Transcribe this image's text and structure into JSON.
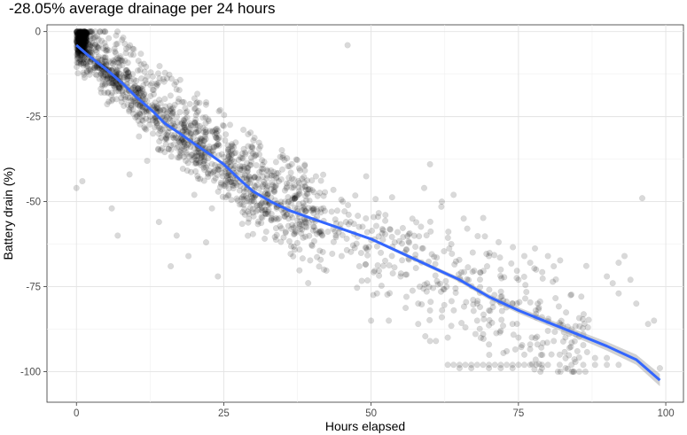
{
  "chart_data": {
    "type": "scatter",
    "title": "-28.05% average drainage per 24 hours",
    "xlabel": "Hours elapsed",
    "ylabel": "Battery drain (%)",
    "xlim": [
      -5,
      103
    ],
    "ylim": [
      -109,
      2
    ],
    "x_ticks": [
      0,
      25,
      50,
      75,
      100
    ],
    "x_tick_labels": [
      "0",
      "25",
      "50",
      "75",
      "100"
    ],
    "y_ticks": [
      0,
      -25,
      -50,
      -75,
      -100
    ],
    "y_tick_labels": [
      "0",
      "-25",
      "-50",
      "-75",
      "-100"
    ],
    "grid": true,
    "point_color": "#000000",
    "point_alpha": 0.15,
    "smooth_color": "#3366ff",
    "ribbon_color": "#999999",
    "smooth_line": {
      "x": [
        0,
        2,
        5,
        8,
        10,
        13,
        15,
        18,
        20,
        23,
        25,
        28,
        30,
        33,
        36,
        40,
        45,
        50,
        55,
        60,
        65,
        70,
        75,
        80,
        85,
        90,
        95,
        99
      ],
      "y": [
        -4,
        -7,
        -11,
        -15.5,
        -19,
        -23.5,
        -27,
        -30.5,
        -33,
        -36.5,
        -39,
        -44,
        -47,
        -50,
        -52.5,
        -55,
        -58,
        -61,
        -65,
        -69,
        -73,
        -78,
        -82,
        -85.5,
        -89,
        -92.5,
        -96.5,
        -102.5
      ]
    },
    "confidence_ribbon_halfwidth": [
      0.4,
      0.3,
      0.3,
      0.3,
      0.3,
      0.3,
      0.3,
      0.3,
      0.3,
      0.3,
      0.3,
      0.3,
      0.3,
      0.3,
      0.3,
      0.3,
      0.4,
      0.4,
      0.5,
      0.6,
      0.7,
      0.8,
      0.9,
      1.0,
      1.1,
      1.3,
      1.5,
      1.8
    ],
    "outlier_points": [
      [
        0,
        -46
      ],
      [
        1,
        -44
      ],
      [
        6,
        -52
      ],
      [
        7,
        -60
      ],
      [
        9,
        -42
      ],
      [
        12,
        -38
      ],
      [
        14,
        -56
      ],
      [
        16,
        -69
      ],
      [
        17,
        -60
      ],
      [
        19,
        -66
      ],
      [
        22,
        -62
      ],
      [
        24,
        -72
      ],
      [
        20,
        -48
      ],
      [
        23,
        -52
      ],
      [
        46,
        -4
      ],
      [
        60,
        -39
      ],
      [
        59,
        -46
      ],
      [
        62,
        -50
      ],
      [
        64,
        -48
      ],
      [
        63,
        -98
      ],
      [
        64,
        -98
      ],
      [
        65,
        -98
      ],
      [
        66,
        -98
      ],
      [
        67,
        -98
      ],
      [
        68,
        -98
      ],
      [
        69,
        -98
      ],
      [
        70,
        -98
      ],
      [
        71,
        -98
      ],
      [
        72,
        -98
      ],
      [
        73,
        -98
      ],
      [
        74,
        -98
      ],
      [
        75,
        -98
      ],
      [
        76,
        -98
      ],
      [
        77,
        -98
      ],
      [
        78,
        -98
      ],
      [
        79,
        -98
      ],
      [
        80,
        -98
      ],
      [
        82,
        -98
      ],
      [
        84,
        -98
      ],
      [
        86,
        -98
      ],
      [
        88,
        -98
      ],
      [
        90,
        -98
      ],
      [
        92,
        -98
      ],
      [
        65,
        -99
      ],
      [
        67,
        -99
      ],
      [
        70,
        -99
      ],
      [
        72,
        -99
      ],
      [
        74,
        -99
      ],
      [
        79,
        -99
      ],
      [
        83,
        -99
      ],
      [
        61,
        -91
      ],
      [
        63,
        -90
      ],
      [
        66,
        -87
      ],
      [
        68,
        -85
      ],
      [
        69,
        -89
      ],
      [
        70,
        -92
      ],
      [
        72,
        -88
      ],
      [
        73,
        -94
      ],
      [
        74,
        -86
      ],
      [
        75,
        -90
      ],
      [
        76,
        -95
      ],
      [
        77,
        -92
      ],
      [
        78,
        -84
      ],
      [
        80,
        -88
      ],
      [
        81,
        -91
      ],
      [
        82,
        -95
      ],
      [
        85,
        -94
      ],
      [
        88,
        -96
      ],
      [
        90,
        -96
      ],
      [
        92,
        -68
      ],
      [
        93,
        -66
      ],
      [
        94,
        -73
      ],
      [
        95,
        -80
      ],
      [
        96,
        -49
      ],
      [
        97,
        -86
      ],
      [
        98,
        -85
      ],
      [
        99,
        -99
      ],
      [
        90,
        -72
      ],
      [
        91,
        -74
      ],
      [
        92,
        -77
      ],
      [
        86,
        -89
      ],
      [
        79,
        -84
      ],
      [
        78,
        -83
      ],
      [
        70,
        -82
      ],
      [
        72,
        -78
      ],
      [
        74,
        -80
      ],
      [
        76,
        -66
      ],
      [
        77,
        -68
      ],
      [
        78,
        -70
      ],
      [
        80,
        -66
      ],
      [
        81,
        -69
      ],
      [
        60,
        -82
      ],
      [
        58,
        -80
      ],
      [
        56,
        -78
      ],
      [
        55,
        -72
      ],
      [
        58,
        -86
      ],
      [
        60,
        -91
      ],
      [
        62,
        -84
      ],
      [
        68,
        -80
      ],
      [
        70,
        -66
      ],
      [
        72,
        -70
      ],
      [
        75,
        -73
      ],
      [
        53,
        -85
      ],
      [
        50,
        -85
      ],
      [
        51,
        -77
      ],
      [
        54,
        -62
      ],
      [
        56,
        -64
      ],
      [
        57,
        -55
      ],
      [
        48,
        -69
      ],
      [
        45,
        -66
      ],
      [
        42,
        -70
      ],
      [
        38,
        -58
      ],
      [
        36,
        -55
      ],
      [
        40,
        -52
      ]
    ]
  }
}
